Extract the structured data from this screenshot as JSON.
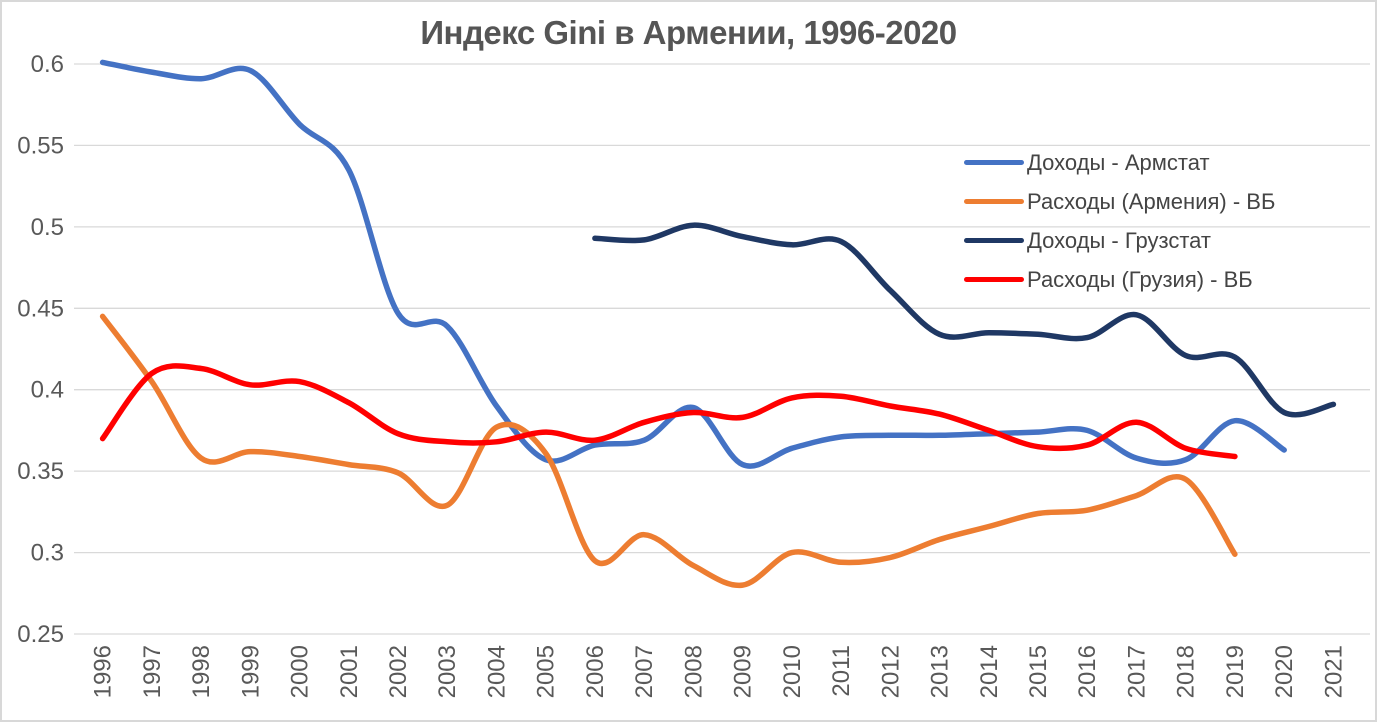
{
  "chart_data": {
    "type": "line",
    "title": "Индекс Gini в Армении, 1996-2020",
    "xlabel": "",
    "ylabel": "",
    "x": [
      1996,
      1997,
      1998,
      1999,
      2000,
      2001,
      2002,
      2003,
      2004,
      2005,
      2006,
      2007,
      2008,
      2009,
      2010,
      2011,
      2012,
      2013,
      2014,
      2015,
      2016,
      2017,
      2018,
      2019,
      2020,
      2021
    ],
    "ylim": [
      0.25,
      0.6
    ],
    "y_tick_step": 0.05,
    "y_ticks": [
      "0.6",
      "0.55",
      "0.5",
      "0.45",
      "0.4",
      "0.35",
      "0.3",
      "0.25"
    ],
    "grid": "horizontal",
    "line_style": "smooth",
    "legend_position": "right-top",
    "series": [
      {
        "name": "Доходы - Армстат",
        "color": "#4472C4",
        "values": [
          0.601,
          0.595,
          0.591,
          0.596,
          0.563,
          0.535,
          0.447,
          0.439,
          0.39,
          0.357,
          0.366,
          0.369,
          0.389,
          0.354,
          0.364,
          0.371,
          0.372,
          0.372,
          0.373,
          0.374,
          0.375,
          0.358,
          0.357,
          0.381,
          0.363,
          null
        ]
      },
      {
        "name": "Расходы (Армения) - ВБ",
        "color": "#ED7D31",
        "values": [
          0.445,
          0.405,
          0.358,
          0.362,
          0.359,
          0.354,
          0.349,
          0.329,
          0.377,
          0.361,
          0.295,
          0.311,
          0.292,
          0.28,
          0.3,
          0.294,
          0.297,
          0.308,
          0.316,
          0.324,
          0.326,
          0.335,
          0.345,
          0.299,
          null,
          null
        ]
      },
      {
        "name": "Доходы - Грузстат",
        "color": "#1F3864",
        "values": [
          null,
          null,
          null,
          null,
          null,
          null,
          null,
          null,
          null,
          null,
          0.493,
          0.492,
          0.501,
          0.494,
          0.489,
          0.491,
          0.461,
          0.434,
          0.435,
          0.434,
          0.432,
          0.446,
          0.421,
          0.42,
          0.386,
          0.391
        ]
      },
      {
        "name": "Расходы (Грузия) - ВБ",
        "color": "#FF0000",
        "values": [
          0.37,
          0.41,
          0.413,
          0.403,
          0.405,
          0.392,
          0.373,
          0.368,
          0.368,
          0.374,
          0.369,
          0.38,
          0.386,
          0.383,
          0.395,
          0.396,
          0.39,
          0.385,
          0.375,
          0.365,
          0.366,
          0.38,
          0.364,
          0.359,
          null,
          null
        ]
      }
    ],
    "style": {
      "grid_color": "#D9D9D9",
      "axis_text_color": "#595959",
      "title_color": "#555555",
      "legend_text_color": "#444444",
      "background": "#FFFFFF",
      "line_width": 5.5
    }
  }
}
